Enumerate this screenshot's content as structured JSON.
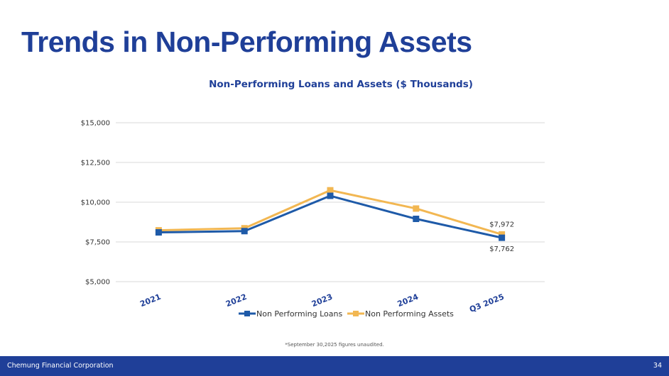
{
  "page": {
    "title": "Trends in Non-Performing Assets",
    "footnote": "*September 30,2025 figures unaudited.",
    "footer_company": "Chemung Financial Corporation",
    "page_number": "34"
  },
  "colors": {
    "brand": "#1f3f98",
    "loans": "#1e5aa8",
    "assets": "#f2b752",
    "grid": "#d9d9d9"
  },
  "chart_data": {
    "type": "line",
    "title": "Non-Performing Loans and Assets ($ Thousands)",
    "categories": [
      "2021",
      "2022",
      "2023",
      "2024",
      "Q3 2025"
    ],
    "y_ticks": [
      5000,
      7500,
      10000,
      12500,
      15000
    ],
    "y_tick_labels": [
      "$5,000",
      "$7,500",
      "$10,000",
      "$12,500",
      "$15,000"
    ],
    "ylim": [
      5000,
      15000
    ],
    "grid": true,
    "legend_position": "bottom",
    "series": [
      {
        "name": "Non Performing Loans",
        "values": [
          8100,
          8180,
          10400,
          8950,
          7762
        ],
        "color": "#1e5aa8"
      },
      {
        "name": "Non Performing Assets",
        "values": [
          8230,
          8360,
          10750,
          9600,
          7972
        ],
        "color": "#f2b752"
      }
    ],
    "data_labels": [
      {
        "series": 1,
        "index": 4,
        "text": "$7,972",
        "placement": "above"
      },
      {
        "series": 0,
        "index": 4,
        "text": "$7,762",
        "placement": "below"
      }
    ]
  }
}
